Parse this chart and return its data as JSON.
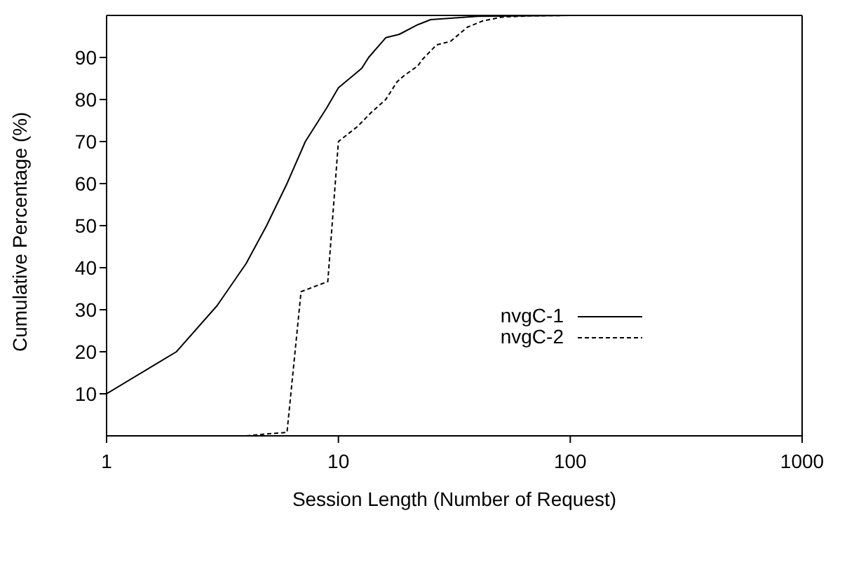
{
  "chart_data": {
    "type": "line",
    "xlabel": "Session Length (Number of Request)",
    "ylabel": "Cumulative Percentage (%)",
    "log": "x",
    "xlim": [
      1,
      1000
    ],
    "xticks": [
      1,
      10,
      100,
      1000
    ],
    "ylim": [
      0,
      100
    ],
    "yticks": [
      10,
      20,
      30,
      40,
      50,
      60,
      70,
      80,
      90
    ],
    "legend": "right",
    "marker": "none",
    "series": [
      {
        "name": "nvgC-1",
        "color": "#000000",
        "line_style": "solid",
        "x": [
          1,
          2,
          3,
          4,
          4.9,
          6,
          7.2,
          8.9,
          10,
          12.6,
          13.5,
          16,
          18.3,
          22,
          25,
          40,
          100,
          1000
        ],
        "values": [
          10,
          20,
          31,
          41,
          50,
          60,
          70,
          78,
          82.8,
          87.4,
          90,
          94.7,
          95.5,
          97.8,
          99,
          99.8,
          100,
          100
        ]
      },
      {
        "name": "nvgC-2",
        "color": "#000000",
        "line_style": "dashed",
        "x": [
          4,
          5,
          6,
          6.9,
          9,
          10,
          12.1,
          13.9,
          16,
          17.9,
          19.1,
          22,
          23,
          26.5,
          30.4,
          36,
          42,
          50.7,
          67,
          100,
          1000
        ],
        "values": [
          0,
          0.5,
          0.8,
          34.3,
          36.7,
          70,
          73.6,
          77,
          80,
          84.2,
          85.6,
          88,
          89.5,
          93,
          93.8,
          97.2,
          98.7,
          99.6,
          99.9,
          100,
          100
        ]
      }
    ]
  }
}
